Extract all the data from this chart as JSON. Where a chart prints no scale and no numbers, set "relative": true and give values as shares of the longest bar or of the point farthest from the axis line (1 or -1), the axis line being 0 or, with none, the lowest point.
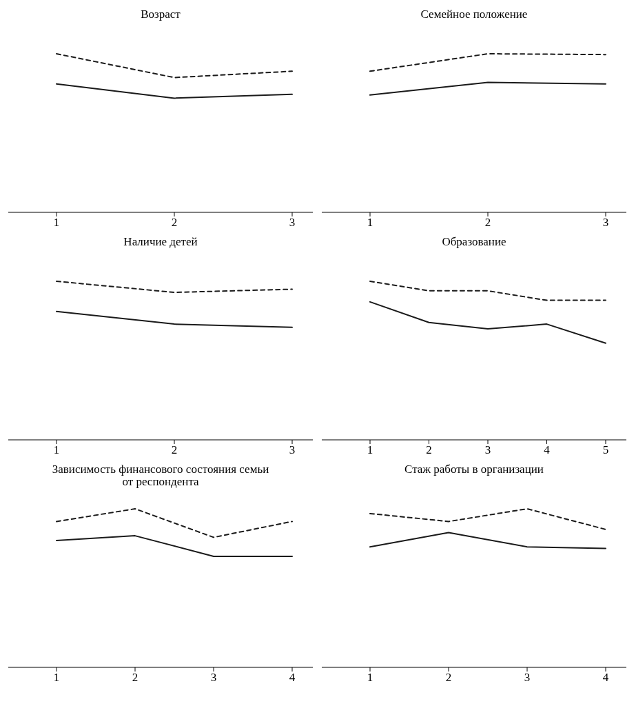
{
  "chart_data": [
    {
      "type": "line",
      "title": "Возраст",
      "categories": [
        "1",
        "2",
        "3"
      ],
      "relative": true,
      "series": [
        {
          "color": "#1a1a1a",
          "line_style": "dashed",
          "values": [
            1,
            0.85,
            0.89
          ]
        },
        {
          "color": "#1a1a1a",
          "line_style": "solid",
          "values": [
            0.81,
            0.72,
            0.745
          ]
        }
      ]
    },
    {
      "type": "line",
      "title": "Семейное положение",
      "categories": [
        "1",
        "2",
        "3"
      ],
      "relative": true,
      "series": [
        {
          "color": "#1a1a1a",
          "line_style": "dashed",
          "values": [
            0.89,
            1,
            0.995
          ]
        },
        {
          "color": "#1a1a1a",
          "line_style": "solid",
          "values": [
            0.74,
            0.82,
            0.81
          ]
        }
      ]
    },
    {
      "type": "line",
      "title": "Наличие детей",
      "categories": [
        "1",
        "2",
        "3"
      ],
      "relative": true,
      "series": [
        {
          "color": "#1a1a1a",
          "line_style": "dashed",
          "values": [
            1,
            0.93,
            0.95
          ]
        },
        {
          "color": "#1a1a1a",
          "line_style": "solid",
          "values": [
            0.81,
            0.73,
            0.71
          ]
        }
      ]
    },
    {
      "type": "line",
      "title": "Образование",
      "categories": [
        "1",
        "2",
        "3",
        "4",
        "5"
      ],
      "relative": true,
      "series": [
        {
          "color": "#1a1a1a",
          "line_style": "dashed",
          "values": [
            1,
            0.94,
            0.94,
            0.88,
            0.88
          ]
        },
        {
          "color": "#1a1a1a",
          "line_style": "solid",
          "values": [
            0.87,
            0.74,
            0.7,
            0.73,
            0.61
          ]
        }
      ]
    },
    {
      "type": "line",
      "title": "Зависимость финансового состояния семьи от респондента",
      "categories": [
        "1",
        "2",
        "3",
        "4"
      ],
      "relative": true,
      "series": [
        {
          "color": "#1a1a1a",
          "line_style": "dashed",
          "values": [
            0.92,
            1,
            0.82,
            0.92
          ]
        },
        {
          "color": "#1a1a1a",
          "line_style": "solid",
          "values": [
            0.8,
            0.83,
            0.7,
            0.7
          ]
        }
      ]
    },
    {
      "type": "line",
      "title": "Стаж работы в организации",
      "categories": [
        "1",
        "2",
        "3",
        "4"
      ],
      "relative": true,
      "series": [
        {
          "color": "#1a1a1a",
          "line_style": "dashed",
          "values": [
            0.97,
            0.92,
            1,
            0.87
          ]
        },
        {
          "color": "#1a1a1a",
          "line_style": "solid",
          "values": [
            0.76,
            0.85,
            0.76,
            0.75
          ]
        }
      ]
    }
  ]
}
